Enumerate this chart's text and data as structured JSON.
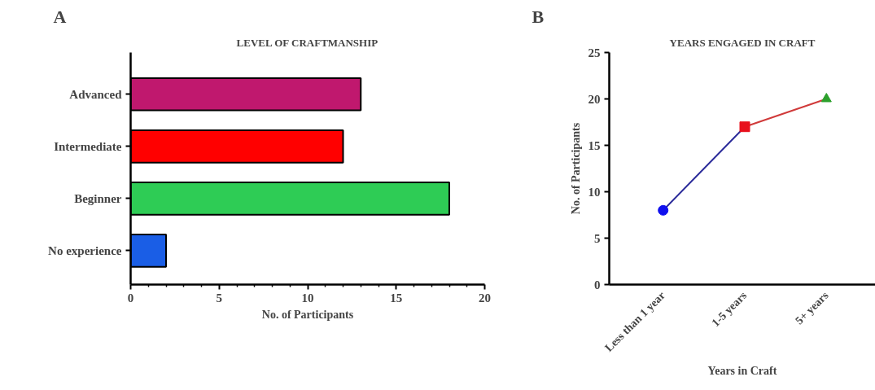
{
  "chart_data": [
    {
      "type": "bar",
      "orientation": "horizontal",
      "title": "LEVEL OF CRAFTMANSHIP",
      "annotations": [
        "A"
      ],
      "xlabel": "No. of Participants",
      "categories": [
        "Advanced",
        "Intermediate",
        "Beginner",
        "No experience"
      ],
      "values": [
        13,
        12,
        18,
        2
      ],
      "colors": [
        "#c0186e",
        "#ff0000",
        "#2ecc55",
        "#1a5ee6"
      ],
      "xlim": [
        0,
        20
      ],
      "xticks": [
        0,
        5,
        10,
        15,
        20
      ],
      "grid": false
    },
    {
      "type": "line",
      "title": "YEARS ENGAGED IN CRAFT",
      "annotations": [
        "B"
      ],
      "xlabel": "Years in Craft",
      "ylabel": "No. of Participants",
      "categories": [
        "Less than 1 year",
        "1-5 years",
        "5+ years"
      ],
      "ylim": [
        0,
        25
      ],
      "yticks": [
        0,
        5,
        10,
        15,
        20,
        25
      ],
      "grid": false,
      "series": [
        {
          "type": "line",
          "color": "#2b2b9a",
          "marker": "none",
          "values": [
            8,
            17,
            null
          ]
        },
        {
          "type": "line",
          "color": "#d03a3a",
          "marker": "none",
          "values": [
            null,
            17,
            20
          ]
        },
        {
          "type": "scatter",
          "color": "#1010ee",
          "marker": "circle",
          "values": [
            8,
            null,
            null
          ]
        },
        {
          "type": "scatter",
          "color": "#e8101c",
          "marker": "square",
          "values": [
            null,
            17,
            null
          ]
        },
        {
          "type": "scatter",
          "color": "#2ca02c",
          "marker": "triangle",
          "values": [
            null,
            null,
            20
          ]
        }
      ]
    }
  ]
}
